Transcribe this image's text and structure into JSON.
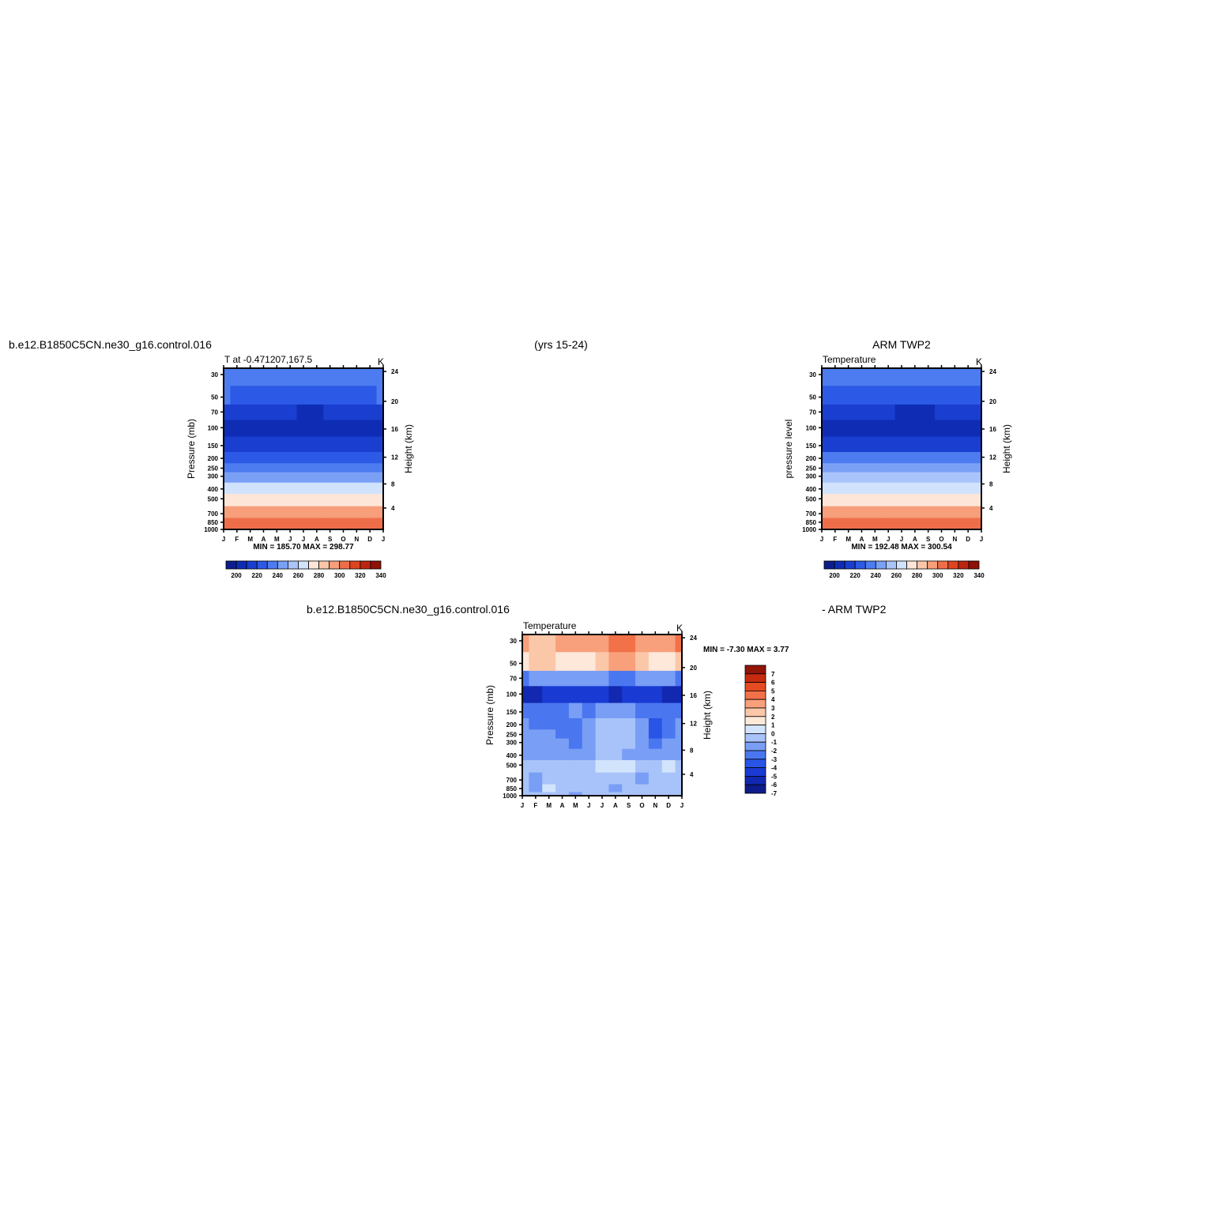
{
  "header": {
    "left_title": "b.e12.B1850C5CN.ne30_g16.control.016",
    "center_title": "(yrs 15-24)",
    "right_title": "ARM TWP2",
    "diff_left_title": "b.e12.B1850C5CN.ne30_g16.control.016",
    "diff_right_title": "- ARM TWP2"
  },
  "chart_data": [
    {
      "type": "heatmap",
      "panel": "model",
      "subtitle": "T at -0.471207,167.5",
      "units": "K",
      "ylabel": "Pressure (mb)",
      "y2label": "Height (km)",
      "x_ticks": [
        "J",
        "F",
        "M",
        "A",
        "M",
        "J",
        "J",
        "A",
        "S",
        "O",
        "N",
        "D",
        "J"
      ],
      "pressure_ticks": [
        "30",
        "50",
        "70",
        "100",
        "150",
        "200",
        "250",
        "300",
        "400",
        "500",
        "700",
        "850",
        "1000"
      ],
      "height_ticks": [
        "24",
        "20",
        "16",
        "12",
        "8",
        "4"
      ],
      "levels_mb": [
        30,
        50,
        70,
        100,
        150,
        200,
        250,
        300,
        400,
        500,
        700,
        850,
        1000
      ],
      "values": [
        [
          228,
          228,
          228,
          228,
          228,
          228,
          228,
          228,
          228,
          228,
          228,
          228,
          228
        ],
        [
          220,
          219,
          219,
          218,
          217,
          216,
          215,
          215,
          216,
          217,
          218,
          219,
          220
        ],
        [
          206,
          205,
          204,
          203,
          202,
          200,
          199,
          199,
          200,
          201,
          203,
          205,
          206
        ],
        [
          194,
          193,
          193,
          193,
          194,
          194,
          194,
          194,
          194,
          194,
          193,
          193,
          194
        ],
        [
          207,
          207,
          207,
          207,
          207,
          207,
          207,
          207,
          207,
          207,
          207,
          207,
          207
        ],
        [
          219,
          219,
          219,
          219,
          219,
          219,
          219,
          218,
          218,
          218,
          218,
          219,
          219
        ],
        [
          229,
          229,
          229,
          229,
          229,
          229,
          229,
          229,
          229,
          229,
          229,
          229,
          229
        ],
        [
          239,
          239,
          239,
          239,
          239,
          239,
          239,
          239,
          239,
          239,
          239,
          239,
          239
        ],
        [
          256,
          256,
          256,
          256,
          256,
          256,
          256,
          256,
          256,
          256,
          256,
          256,
          256
        ],
        [
          268,
          268,
          268,
          268,
          268,
          268,
          268,
          268,
          268,
          268,
          268,
          268,
          268
        ],
        [
          283,
          283,
          283,
          283,
          283,
          283,
          283,
          283,
          283,
          283,
          283,
          283,
          283
        ],
        [
          292,
          292,
          292,
          292,
          292,
          292,
          292,
          292,
          292,
          292,
          292,
          292,
          292
        ],
        [
          297,
          297,
          297,
          297,
          297,
          297,
          297,
          297,
          297,
          297,
          297,
          297,
          297
        ]
      ],
      "min_label": "MIN = 185.70 MAX = 298.77",
      "colorbar_ticks": [
        "200",
        "220",
        "240",
        "260",
        "280",
        "300",
        "320",
        "340"
      ]
    },
    {
      "type": "heatmap",
      "panel": "obs",
      "subtitle": "Temperature",
      "units": "K",
      "ylabel": "pressure level",
      "y2label": "Height (km)",
      "x_ticks": [
        "J",
        "F",
        "M",
        "A",
        "M",
        "J",
        "J",
        "A",
        "S",
        "O",
        "N",
        "D",
        "J"
      ],
      "pressure_ticks": [
        "30",
        "50",
        "70",
        "100",
        "150",
        "200",
        "250",
        "300",
        "400",
        "500",
        "700",
        "850",
        "1000"
      ],
      "height_ticks": [
        "24",
        "20",
        "16",
        "12",
        "8",
        "4"
      ],
      "levels_mb": [
        30,
        50,
        70,
        100,
        150,
        200,
        250,
        300,
        400,
        500,
        700,
        850,
        1000
      ],
      "values": [
        [
          225,
          225,
          225,
          225,
          225,
          225,
          225,
          225,
          225,
          225,
          225,
          225,
          225
        ],
        [
          216,
          216,
          216,
          215,
          214,
          213,
          212,
          211,
          212,
          213,
          214,
          215,
          216
        ],
        [
          206,
          205,
          205,
          204,
          203,
          201,
          199,
          197,
          199,
          201,
          203,
          205,
          206
        ],
        [
          197,
          197,
          197,
          197,
          197,
          197,
          197,
          196,
          197,
          197,
          197,
          197,
          197
        ],
        [
          209,
          209,
          209,
          209,
          209,
          209,
          209,
          209,
          209,
          209,
          209,
          209,
          209
        ],
        [
          220,
          220,
          220,
          220,
          220,
          220,
          220,
          220,
          220,
          220,
          220,
          220,
          220
        ],
        [
          231,
          231,
          231,
          231,
          231,
          231,
          231,
          231,
          231,
          231,
          231,
          231,
          231
        ],
        [
          241,
          241,
          241,
          241,
          241,
          241,
          241,
          241,
          241,
          241,
          241,
          241,
          241
        ],
        [
          258,
          258,
          258,
          258,
          258,
          258,
          258,
          258,
          258,
          258,
          258,
          258,
          258
        ],
        [
          269,
          269,
          269,
          269,
          269,
          269,
          269,
          269,
          269,
          269,
          269,
          269,
          269
        ],
        [
          284,
          284,
          284,
          284,
          284,
          284,
          284,
          284,
          284,
          284,
          284,
          284,
          284
        ],
        [
          294,
          294,
          294,
          294,
          294,
          294,
          294,
          294,
          294,
          294,
          294,
          294,
          294
        ],
        [
          299,
          299,
          299,
          299,
          299,
          299,
          299,
          299,
          299,
          299,
          299,
          299,
          299
        ]
      ],
      "min_label": "MIN = 192.48 MAX = 300.54",
      "colorbar_ticks": [
        "200",
        "220",
        "240",
        "260",
        "280",
        "300",
        "320",
        "340"
      ]
    },
    {
      "type": "heatmap",
      "panel": "difference",
      "subtitle": "Temperature",
      "units": "K",
      "ylabel": "Pressure (mb)",
      "y2label": "Height (km)",
      "x_ticks": [
        "J",
        "F",
        "M",
        "A",
        "M",
        "J",
        "J",
        "A",
        "S",
        "O",
        "N",
        "D",
        "J"
      ],
      "pressure_ticks": [
        "30",
        "50",
        "70",
        "100",
        "150",
        "200",
        "250",
        "300",
        "400",
        "500",
        "700",
        "850",
        "1000"
      ],
      "height_ticks": [
        "24",
        "20",
        "16",
        "12",
        "8",
        "4"
      ],
      "levels_mb": [
        30,
        50,
        70,
        100,
        150,
        200,
        250,
        300,
        400,
        500,
        700,
        850,
        1000
      ],
      "values": [
        [
          2.2,
          1.8,
          1.6,
          2.0,
          2.4,
          2.6,
          2.8,
          3.2,
          3.3,
          2.9,
          2.6,
          2.8,
          3.4
        ],
        [
          0.8,
          1.5,
          1.0,
          0.7,
          0.3,
          0.9,
          1.4,
          2.0,
          2.1,
          1.6,
          0.8,
          0.6,
          1.2
        ],
        [
          -3.4,
          -2.6,
          -2.2,
          -2.4,
          -2.5,
          -2.4,
          -2.6,
          -3.2,
          -3.1,
          -3.0,
          -2.8,
          -3.0,
          -3.5
        ],
        [
          -6.9,
          -6.2,
          -5.6,
          -5.4,
          -5.5,
          -5.6,
          -5.9,
          -6.3,
          -5.8,
          -5.6,
          -5.9,
          -6.4,
          -6.8
        ],
        [
          -3.4,
          -3.5,
          -3.8,
          -3.3,
          -3.0,
          -3.4,
          -2.6,
          -2.4,
          -2.8,
          -3.5,
          -3.8,
          -3.4,
          -3.2
        ],
        [
          -3.0,
          -3.1,
          -3.2,
          -3.4,
          -3.6,
          -2.4,
          -1.8,
          -1.6,
          -2.0,
          -3.0,
          -4.2,
          -3.4,
          -3.0
        ],
        [
          -3.0,
          -3.0,
          -2.8,
          -3.3,
          -3.5,
          -2.2,
          -1.8,
          -1.7,
          -2.0,
          -2.8,
          -4.1,
          -3.2,
          -2.9
        ],
        [
          -2.9,
          -2.8,
          -2.6,
          -2.8,
          -3.2,
          -2.2,
          -1.9,
          -1.7,
          -1.9,
          -2.8,
          -3.2,
          -3.0,
          -2.8
        ],
        [
          -2.5,
          -2.4,
          -2.4,
          -2.6,
          -2.6,
          -2.3,
          -1.9,
          -1.8,
          -2.1,
          -2.3,
          -2.4,
          -2.5,
          -2.5
        ],
        [
          -1.4,
          -1.6,
          -1.8,
          -1.9,
          -1.8,
          -1.6,
          -0.6,
          -0.6,
          -0.7,
          -1.6,
          -1.8,
          -0.8,
          -1.2
        ],
        [
          -1.4,
          -2.2,
          -1.7,
          -1.9,
          -1.9,
          -1.8,
          -1.7,
          -1.7,
          -1.8,
          -2.2,
          -1.7,
          -1.6,
          -1.4
        ],
        [
          -1.6,
          -2.4,
          -0.8,
          -1.8,
          -1.6,
          -1.8,
          -1.7,
          -2.2,
          -1.9,
          -1.6,
          -1.7,
          -1.7,
          -1.5
        ],
        [
          -1.5,
          -1.6,
          -1.8,
          -1.9,
          -2.3,
          -1.5,
          -1.5,
          -1.6,
          -1.6,
          -1.6,
          -1.7,
          -1.6,
          -1.5
        ]
      ],
      "min_label": "MIN = -7.30 MAX = 3.77",
      "colorbar_ticks": [
        "7",
        "6",
        "5",
        "4",
        "3",
        "2",
        "1",
        "0",
        "-1",
        "-2",
        "-3",
        "-4",
        "-5",
        "-6",
        "-7"
      ]
    }
  ],
  "colors": {
    "abs_palette": [
      "#0d1e8c",
      "#0f2db4",
      "#1a3fd0",
      "#2c5ae6",
      "#4d7bf0",
      "#7aa0f6",
      "#a9c4fa",
      "#d1e2fc",
      "#fde6d8",
      "#fbc6a8",
      "#f79e7a",
      "#ef6e4a",
      "#dd4420",
      "#bb2610",
      "#8e1206"
    ],
    "diff_palette": [
      "#0d1c8a",
      "#1228b0",
      "#1a3ad4",
      "#2955e6",
      "#4a77f0",
      "#799ef5",
      "#a8c3f9",
      "#d2e3fc",
      "#fde8da",
      "#fbc7a9",
      "#f8a07b",
      "#f27148",
      "#e54b22",
      "#c62b10",
      "#931508"
    ]
  }
}
